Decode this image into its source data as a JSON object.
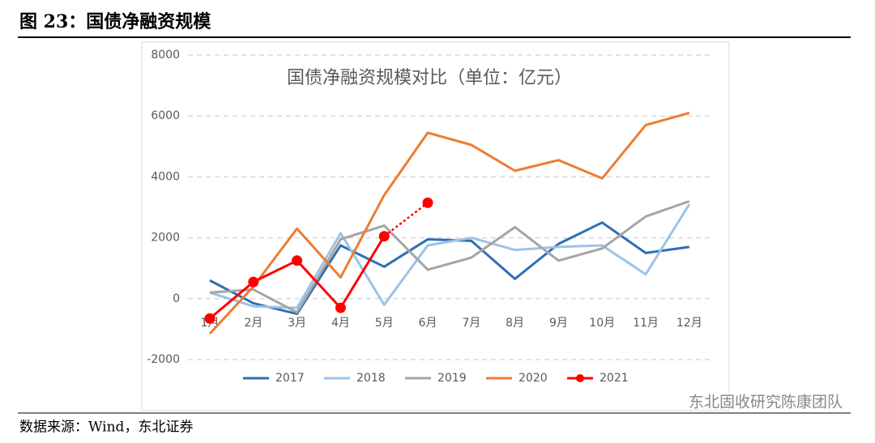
{
  "figure_title": "图 23：国债净融资规模",
  "source": "数据来源：Wind，东北证券",
  "watermark": "东北固收研究陈康团队",
  "chart_data": {
    "type": "line",
    "title": "国债净融资规模对比（单位：亿元）",
    "categories": [
      "1月",
      "2月",
      "3月",
      "4月",
      "5月",
      "6月",
      "7月",
      "8月",
      "9月",
      "10月",
      "11月",
      "12月"
    ],
    "ylim": [
      -2000,
      8000
    ],
    "yticks": [
      -2000,
      0,
      2000,
      4000,
      6000,
      8000
    ],
    "grid": true,
    "legend": "bottom",
    "series": [
      {
        "name": "2017",
        "color": "#2e6fb5",
        "values": [
          600,
          -150,
          -500,
          1750,
          1050,
          1950,
          1900,
          650,
          1800,
          2500,
          1500,
          1700
        ]
      },
      {
        "name": "2018",
        "color": "#9dc3e6",
        "values": [
          200,
          -250,
          -300,
          2150,
          -200,
          1750,
          2000,
          1600,
          1700,
          1750,
          800,
          3100
        ]
      },
      {
        "name": "2019",
        "color": "#a5a5a5",
        "values": [
          200,
          300,
          -450,
          1950,
          2400,
          950,
          1350,
          2350,
          1250,
          1650,
          2700,
          3200
        ]
      },
      {
        "name": "2020",
        "color": "#ed7d31",
        "values": [
          -1150,
          400,
          2300,
          700,
          3400,
          5450,
          5050,
          4200,
          4550,
          3950,
          5700,
          6100
        ]
      },
      {
        "name": "2021",
        "color": "#ff0000",
        "markers": true,
        "dotted_last": true,
        "values": [
          -650,
          550,
          1250,
          -300,
          2050,
          3150,
          null,
          null,
          null,
          null,
          null,
          null
        ]
      }
    ]
  }
}
